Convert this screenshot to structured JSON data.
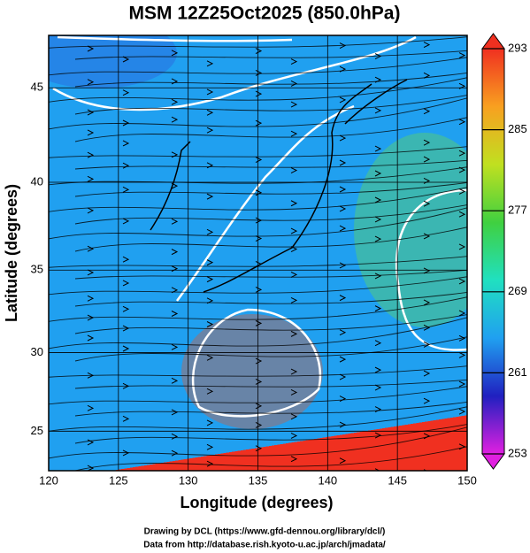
{
  "title": "MSM 12Z25Oct2025 (850.0hPa)",
  "map": {
    "x_label": "Longitude (degrees)",
    "y_label": "Latitude  (degrees)",
    "xlim": [
      120,
      150
    ],
    "ylim": [
      22.4,
      47.6
    ],
    "y_scale": "mercator",
    "xticks": [
      120,
      125,
      130,
      135,
      140,
      145,
      150
    ],
    "yticks": [
      25,
      30,
      35,
      40,
      45
    ],
    "grid": true
  },
  "colorbar": {
    "lim": [
      253,
      293
    ],
    "ticks": [
      253,
      261,
      269,
      277,
      285,
      293
    ],
    "colors": [
      "#e020e0",
      "#2020c0",
      "#20a0f0",
      "#20e0c0",
      "#40d040",
      "#c0e020",
      "#f8a020",
      "#f03020"
    ]
  },
  "credits": [
    "Drawing by DCL (https://www.gfd-dennou.org/library/dcl/)",
    "Data from http://database.rish.kyoto-u.ac.jp/arch/jmadata/"
  ]
}
